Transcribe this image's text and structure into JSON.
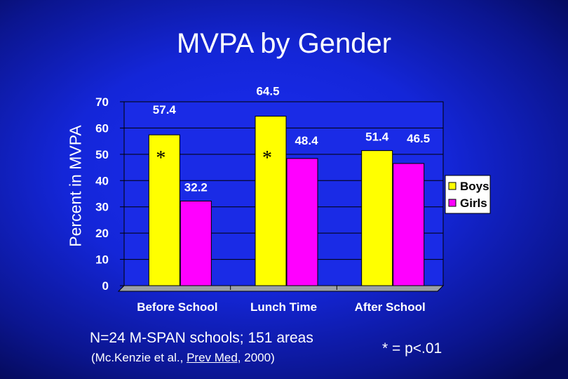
{
  "title": "MVPA by Gender",
  "footnote": "N=24 M-SPAN schools; 151 areas",
  "citation": {
    "prefix": "(Mc.Kenzie et al., ",
    "journal": "Prev Med,",
    "suffix": " 2000)"
  },
  "significance_note": "* = p<.01",
  "colors": {
    "boys": "#ffff00",
    "girls": "#ff00ff",
    "plot_bg": "#1a2be6",
    "legend_bg": "#ffffff"
  },
  "chart_data": {
    "type": "bar",
    "title": "MVPA by Gender",
    "ylabel": "Percent in MVPA",
    "xlabel": "",
    "categories": [
      "Before School",
      "Lunch Time",
      "After School"
    ],
    "series": [
      {
        "name": "Boys",
        "values": [
          57.4,
          64.5,
          51.4
        ]
      },
      {
        "name": "Girls",
        "values": [
          32.2,
          48.4,
          46.5
        ]
      }
    ],
    "data_labels": {
      "Boys": [
        "57.4",
        "64.5",
        "51.4"
      ],
      "Girls": [
        "32.2",
        "48.4",
        "46.5"
      ]
    },
    "significance_markers": [
      "*",
      "*",
      ""
    ],
    "ylim": [
      0,
      70
    ],
    "yticks": [
      0,
      10,
      20,
      30,
      40,
      50,
      60,
      70
    ],
    "grid": true,
    "legend_position": "right"
  }
}
